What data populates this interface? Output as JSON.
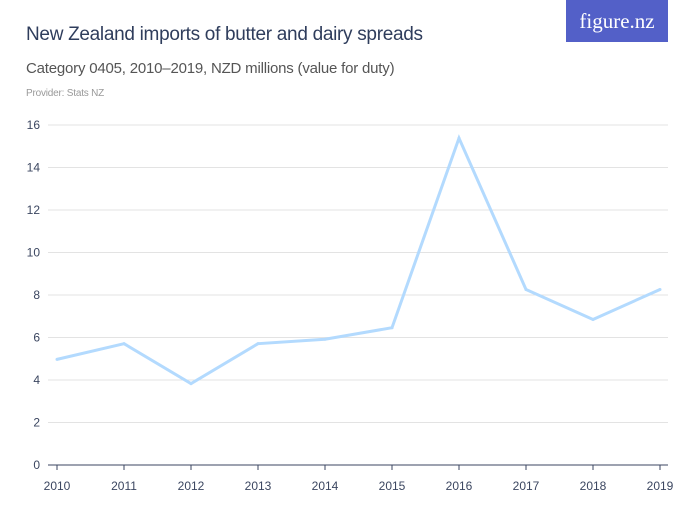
{
  "header": {
    "title": "New Zealand imports of butter and dairy spreads",
    "subtitle": "Category 0405, 2010–2019, NZD millions (value for duty)",
    "provider": "Provider: Stats NZ",
    "logo": "figure.nz"
  },
  "chart_data": {
    "type": "line",
    "title": "New Zealand imports of butter and dairy spreads",
    "subtitle": "Category 0405, 2010–2019, NZD millions (value for duty)",
    "xlabel": "",
    "ylabel": "",
    "categories": [
      "2010",
      "2011",
      "2012",
      "2013",
      "2014",
      "2015",
      "2016",
      "2017",
      "2018",
      "2019"
    ],
    "series": [
      {
        "values": [
          4.97,
          5.71,
          3.83,
          5.71,
          5.92,
          6.46,
          15.38,
          8.26,
          6.85,
          8.26
        ],
        "color": "#b3dafe"
      }
    ],
    "ylim": [
      0,
      16
    ],
    "yticks": [
      "0",
      "2",
      "4",
      "6",
      "8",
      "10",
      "12",
      "14",
      "16"
    ],
    "grid": true,
    "legend": "none"
  },
  "colors": {
    "logo_bg": "#5360c8",
    "title": "#2f3d5c",
    "line": "#b3dafe",
    "grid": "#e3e3e3"
  }
}
